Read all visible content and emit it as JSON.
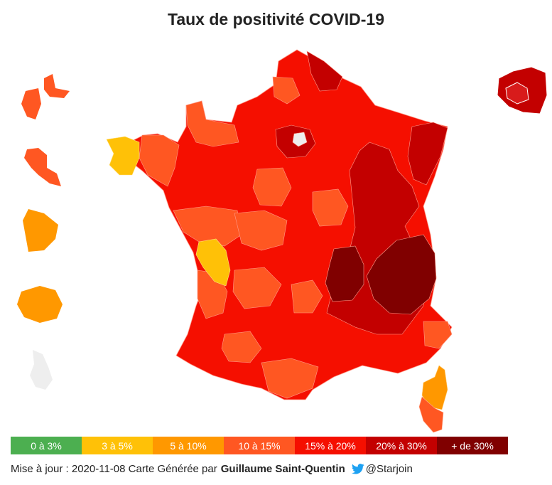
{
  "title": "Taux de positivité COVID-19",
  "colors": {
    "c0": "#4caf50",
    "c1": "#ffc107",
    "c2": "#ff9800",
    "c3": "#ff5722",
    "c4": "#f50f00",
    "c5": "#c30000",
    "c6": "#800000",
    "na": "#eeeeee",
    "twitter": "#1da1f2"
  },
  "legend": [
    {
      "label": "0 à 3%",
      "color": "#4caf50"
    },
    {
      "label": "3 à 5%",
      "color": "#ffc107"
    },
    {
      "label": "5 à 10%",
      "color": "#ff9800"
    },
    {
      "label": "10 à 15%",
      "color": "#ff5722"
    },
    {
      "label": "15% à 20%",
      "color": "#f50f00"
    },
    {
      "label": "20% à 30%",
      "color": "#c30000"
    },
    {
      "label": "+ de 30%",
      "color": "#800000"
    }
  ],
  "overseas": [
    {
      "name": "Guadeloupe",
      "class": "10 à 15%"
    },
    {
      "name": "Martinique",
      "class": "10 à 15%"
    },
    {
      "name": "Guyane",
      "class": "5 à 10%"
    },
    {
      "name": "La Réunion",
      "class": "5 à 10%"
    },
    {
      "name": "Mayotte",
      "class": "no data"
    },
    {
      "name": "Île-de-France (inset)",
      "class": "20% à 30%"
    }
  ],
  "footer": {
    "update_prefix": "Mise à jour : ",
    "date": "2020-11-08",
    "generated_by": " Carte Générée par",
    "author": "Guillaume Saint-Quentin",
    "twitter_icon": "twitter-bird-icon",
    "handle": "@Starjoin"
  }
}
